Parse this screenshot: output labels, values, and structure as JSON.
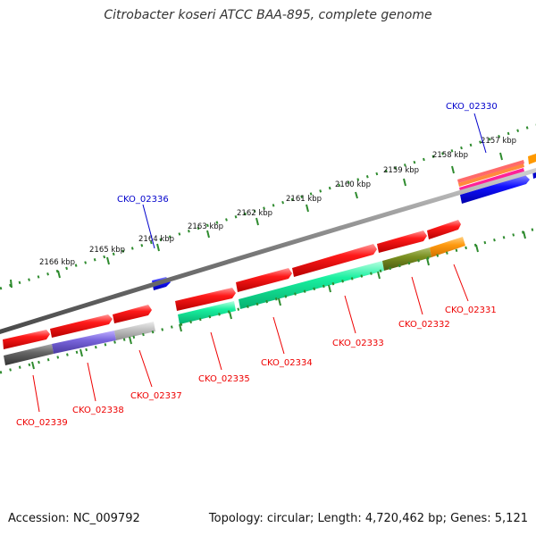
{
  "title": "Citrobacter koseri ATCC BAA-895, complete genome",
  "footer": {
    "accession": "Accession: NC_009792",
    "summary": "Topology: circular; Length: 4,720,462 bp; Genes: 5,121"
  },
  "colors": {
    "backbone": "#7a7a7a",
    "tick": "#2e8b2e",
    "red_label": "#ee0000",
    "blue_label": "#0000cc"
  },
  "kbp_labels": [
    "2157 kbp",
    "2158 kbp",
    "2159 kbp",
    "2160 kbp",
    "2161 kbp",
    "2162 kbp",
    "2163 kbp",
    "2164 kbp",
    "2165 kbp",
    "2166 kbp"
  ],
  "gene_labels_top": [
    "CKO_02330",
    "CKO_02336"
  ],
  "gene_labels_bottom": [
    "CKO_02331",
    "CKO_02332",
    "CKO_02333",
    "CKO_02334",
    "CKO_02335",
    "CKO_02337",
    "CKO_02338",
    "CKO_02339"
  ]
}
